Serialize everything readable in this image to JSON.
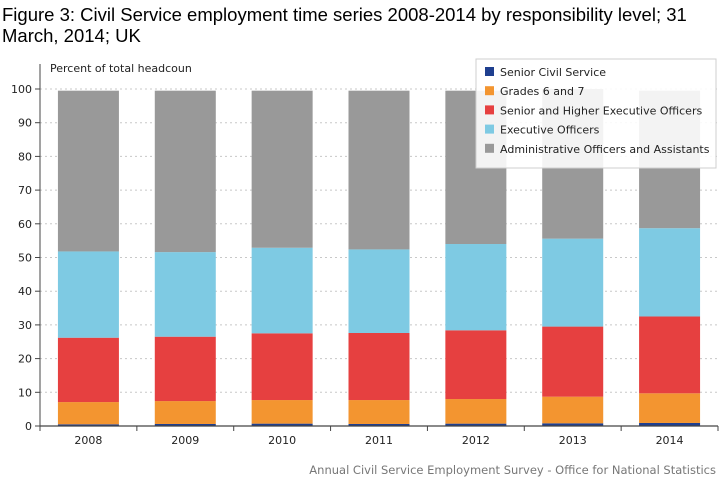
{
  "title": "Figure 3: Civil Service employment time series 2008-2014 by responsibility level; 31 March, 2014; UK",
  "source": "Annual Civil Service Employment Survey - Office for National Statistics",
  "chart_data": {
    "type": "bar",
    "stacked": true,
    "ylabel": "Percent of total headcoun",
    "xlabel": "",
    "ylim": [
      0,
      100
    ],
    "yticks": [
      0,
      10,
      20,
      30,
      40,
      50,
      60,
      70,
      80,
      90,
      100
    ],
    "grid": true,
    "legend_position": "top-right",
    "categories": [
      "2008",
      "2009",
      "2010",
      "2011",
      "2012",
      "2013",
      "2014"
    ],
    "series": [
      {
        "name": "Senior Civil Service",
        "color": "#1f3f8f",
        "values": [
          0.5,
          0.6,
          0.7,
          0.6,
          0.7,
          0.8,
          0.9
        ]
      },
      {
        "name": "Grades 6 and 7",
        "color": "#f39530",
        "values": [
          6.6,
          6.8,
          7.0,
          7.1,
          7.3,
          7.9,
          8.8
        ]
      },
      {
        "name": "Senior and Higher Executive Officers",
        "color": "#e64040",
        "values": [
          19.1,
          19.1,
          19.8,
          19.9,
          20.4,
          20.8,
          22.8
        ]
      },
      {
        "name": "Executive Officers",
        "color": "#7ecae3",
        "values": [
          25.6,
          25.1,
          25.4,
          24.8,
          25.6,
          26.1,
          26.2
        ]
      },
      {
        "name": "Administrative Officers and Assistants",
        "color": "#999999",
        "values": [
          47.7,
          47.9,
          46.6,
          47.1,
          45.5,
          44.4,
          40.8
        ]
      }
    ]
  }
}
